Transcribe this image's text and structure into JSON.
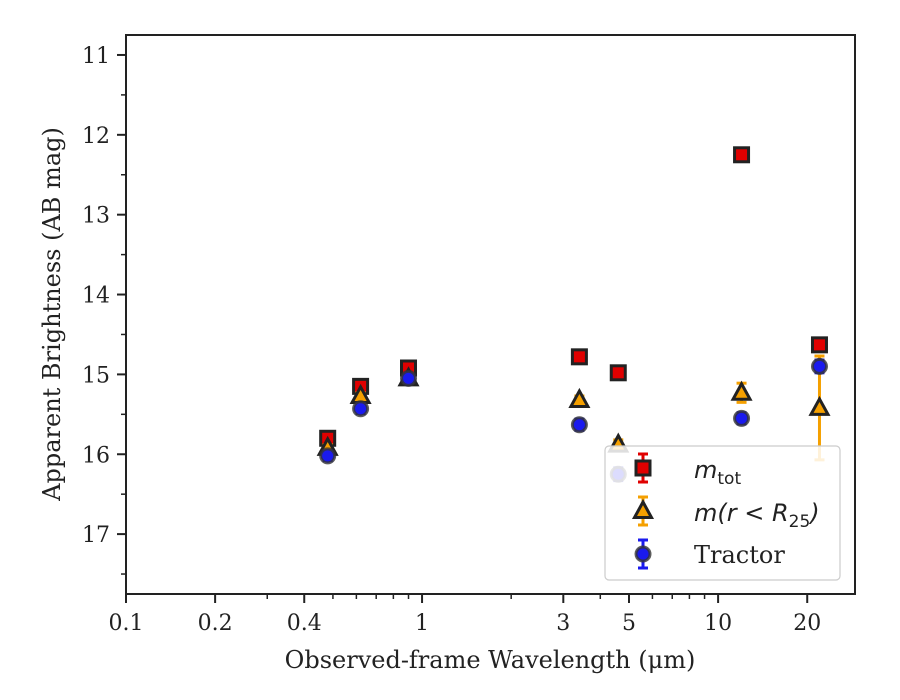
{
  "chart_data": {
    "type": "scatter",
    "title": "",
    "xlabel": "Observed-frame Wavelength (μm)",
    "ylabel": "Apparent Brightness (AB mag)",
    "xscale": "log",
    "xlim": [
      0.1,
      29
    ],
    "ylim": [
      17.75,
      10.75
    ],
    "y_inverted": true,
    "x_ticks": [
      0.1,
      0.2,
      0.4,
      1,
      3,
      5,
      10,
      20
    ],
    "x_tick_labels": [
      "0.1",
      "0.2",
      "0.4",
      "1",
      "3",
      "5",
      "10",
      "20"
    ],
    "y_ticks": [
      11,
      12,
      13,
      14,
      15,
      16,
      17
    ],
    "y_tick_labels": [
      "11",
      "12",
      "13",
      "14",
      "15",
      "16",
      "17"
    ],
    "grid": false,
    "legend_position": "lower-right",
    "series": [
      {
        "name": "m_tot",
        "label_main": "m",
        "label_sub": "tot",
        "marker": "square",
        "color": "#e00000",
        "edge_color": "#222222",
        "x": [
          0.48,
          0.62,
          0.9,
          3.4,
          4.6,
          12,
          22
        ],
        "y": [
          15.8,
          15.15,
          14.92,
          14.78,
          14.98,
          12.25,
          14.63
        ],
        "yerr": [
          0.05,
          0.05,
          0.05,
          0.05,
          0.05,
          0.05,
          0.05
        ]
      },
      {
        "name": "m(r < R_25)",
        "label_main": "m(r < R",
        "label_sub": "25",
        "label_end": ")",
        "marker": "triangle",
        "color": "#f5a000",
        "edge_color": "#222222",
        "x": [
          0.48,
          0.62,
          0.9,
          3.4,
          4.6,
          12,
          22
        ],
        "y": [
          15.92,
          15.27,
          15.05,
          15.32,
          15.88,
          15.23,
          15.42
        ],
        "yerr": [
          0.04,
          0.04,
          0.04,
          0.05,
          0.06,
          0.12,
          0.65
        ]
      },
      {
        "name": "Tractor",
        "marker": "circle",
        "color": "#1a1aee",
        "edge_color": "#333333",
        "x": [
          0.48,
          0.62,
          0.9,
          3.4,
          4.6,
          12,
          22
        ],
        "y": [
          16.02,
          15.43,
          15.05,
          15.63,
          16.25,
          15.55,
          14.9
        ],
        "yerr": [
          0.06,
          0.06,
          0.05,
          0.07,
          0.08,
          0.07,
          0.08
        ]
      }
    ]
  }
}
